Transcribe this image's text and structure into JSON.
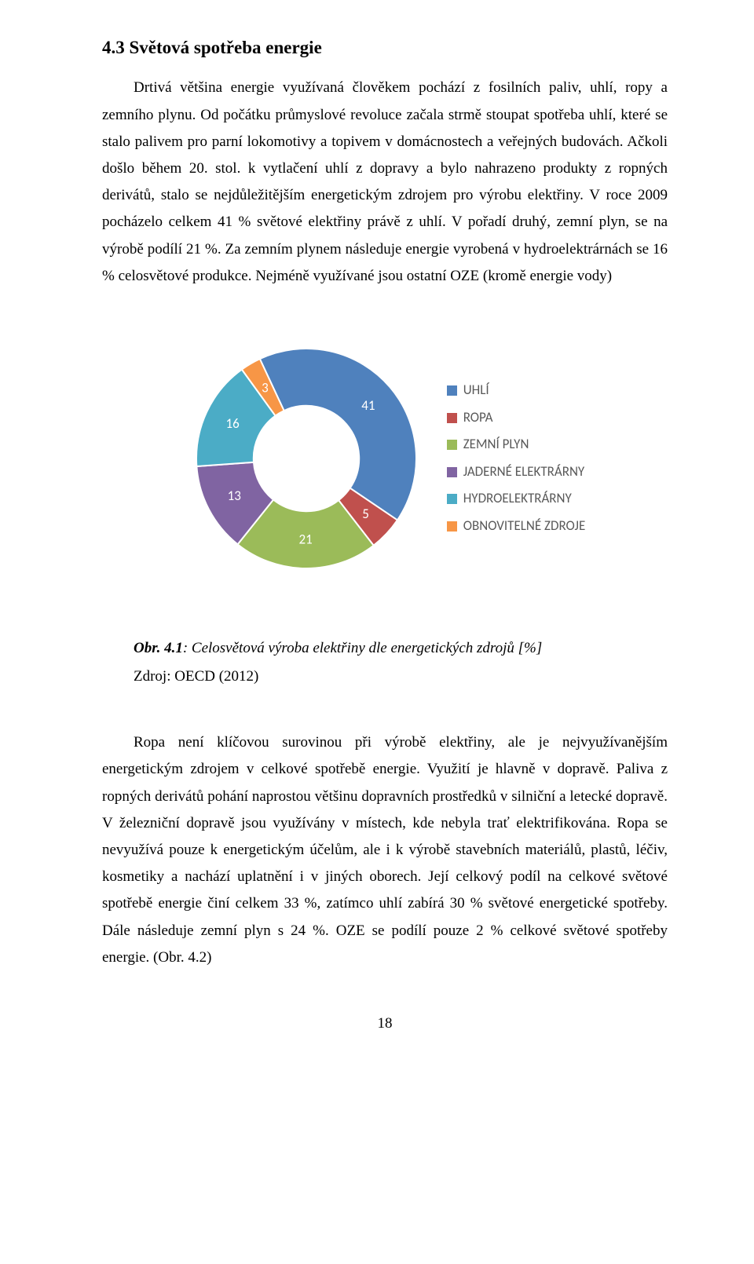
{
  "heading": "4.3 Světová spotřeba energie",
  "para1": "Drtivá většina energie využívaná člověkem pochází z fosilních paliv, uhlí, ropy a zemního plynu. Od počátku průmyslové revoluce začala strmě stoupat spotřeba uhlí, které se stalo palivem pro parní lokomotivy a topivem v domácnostech a veřejných budovách. Ačkoli došlo během 20. stol. k vytlačení uhlí z dopravy a bylo nahrazeno produkty z ropných derivátů, stalo se nejdůležitějším energetickým zdrojem pro výrobu elektřiny. V roce 2009 pocházelo celkem 41 % světové elektřiny právě z uhlí. V pořadí druhý, zemní plyn, se na výrobě podílí 21 %. Za zemním plynem následuje energie vyrobená v hydroelektrárnách se 16 % celosvětové produkce. Nejméně využívané jsou ostatní OZE (kromě energie vody)",
  "chart": {
    "type": "donut",
    "background_color": "#ffffff",
    "label_fontsize": 17,
    "label_font": "Calibri",
    "label_color": "#ffffff",
    "inner_radius_ratio": 0.48,
    "slices": [
      {
        "label": "UHLÍ",
        "value": 41,
        "color": "#4f81bd"
      },
      {
        "label": "ROPA",
        "value": 5,
        "color": "#c0504d"
      },
      {
        "label": "ZEMNÍ PLYN",
        "value": 21,
        "color": "#9bbb59"
      },
      {
        "label": "JADERNÉ ELEKTRÁRNY",
        "value": 13,
        "color": "#8064a2"
      },
      {
        "label": "HYDROELEKTRÁRNY",
        "value": 16,
        "color": "#4bacc6"
      },
      {
        "label": "OBNOVITELNÉ ZDROJE",
        "value": 3,
        "color": "#f79646"
      }
    ],
    "stroke_color": "#ffffff",
    "stroke_width": 2,
    "legend_swatch_size": 13,
    "legend_text_color": "#595959"
  },
  "caption_prefix": "Obr. 4.1",
  "caption_rest": ": Celosvětová výroba elektřiny dle energetických zdrojů [%]",
  "source": "Zdroj: OECD (2012)",
  "para2": "Ropa není klíčovou surovinou při výrobě elektřiny, ale je nejvyužívanějším energetickým zdrojem v celkové spotřebě energie. Využití je hlavně v dopravě. Paliva z ropných derivátů pohání naprostou většinu dopravních prostředků v silniční a letecké dopravě. V železniční dopravě jsou využívány v místech, kde nebyla trať elektrifikována. Ropa se nevyužívá pouze k energetickým účelům, ale i k výrobě stavebních materiálů, plastů, léčiv, kosmetiky a nachází uplatnění i v jiných oborech. Její celkový podíl na celkové světové spotřebě energie činí celkem 33 %, zatímco uhlí zabírá 30 % světové energetické spotřeby. Dále následuje zemní plyn s 24 %. OZE se podílí pouze 2 % celkové světové spotřeby energie. (Obr. 4.2)",
  "page_number": "18"
}
